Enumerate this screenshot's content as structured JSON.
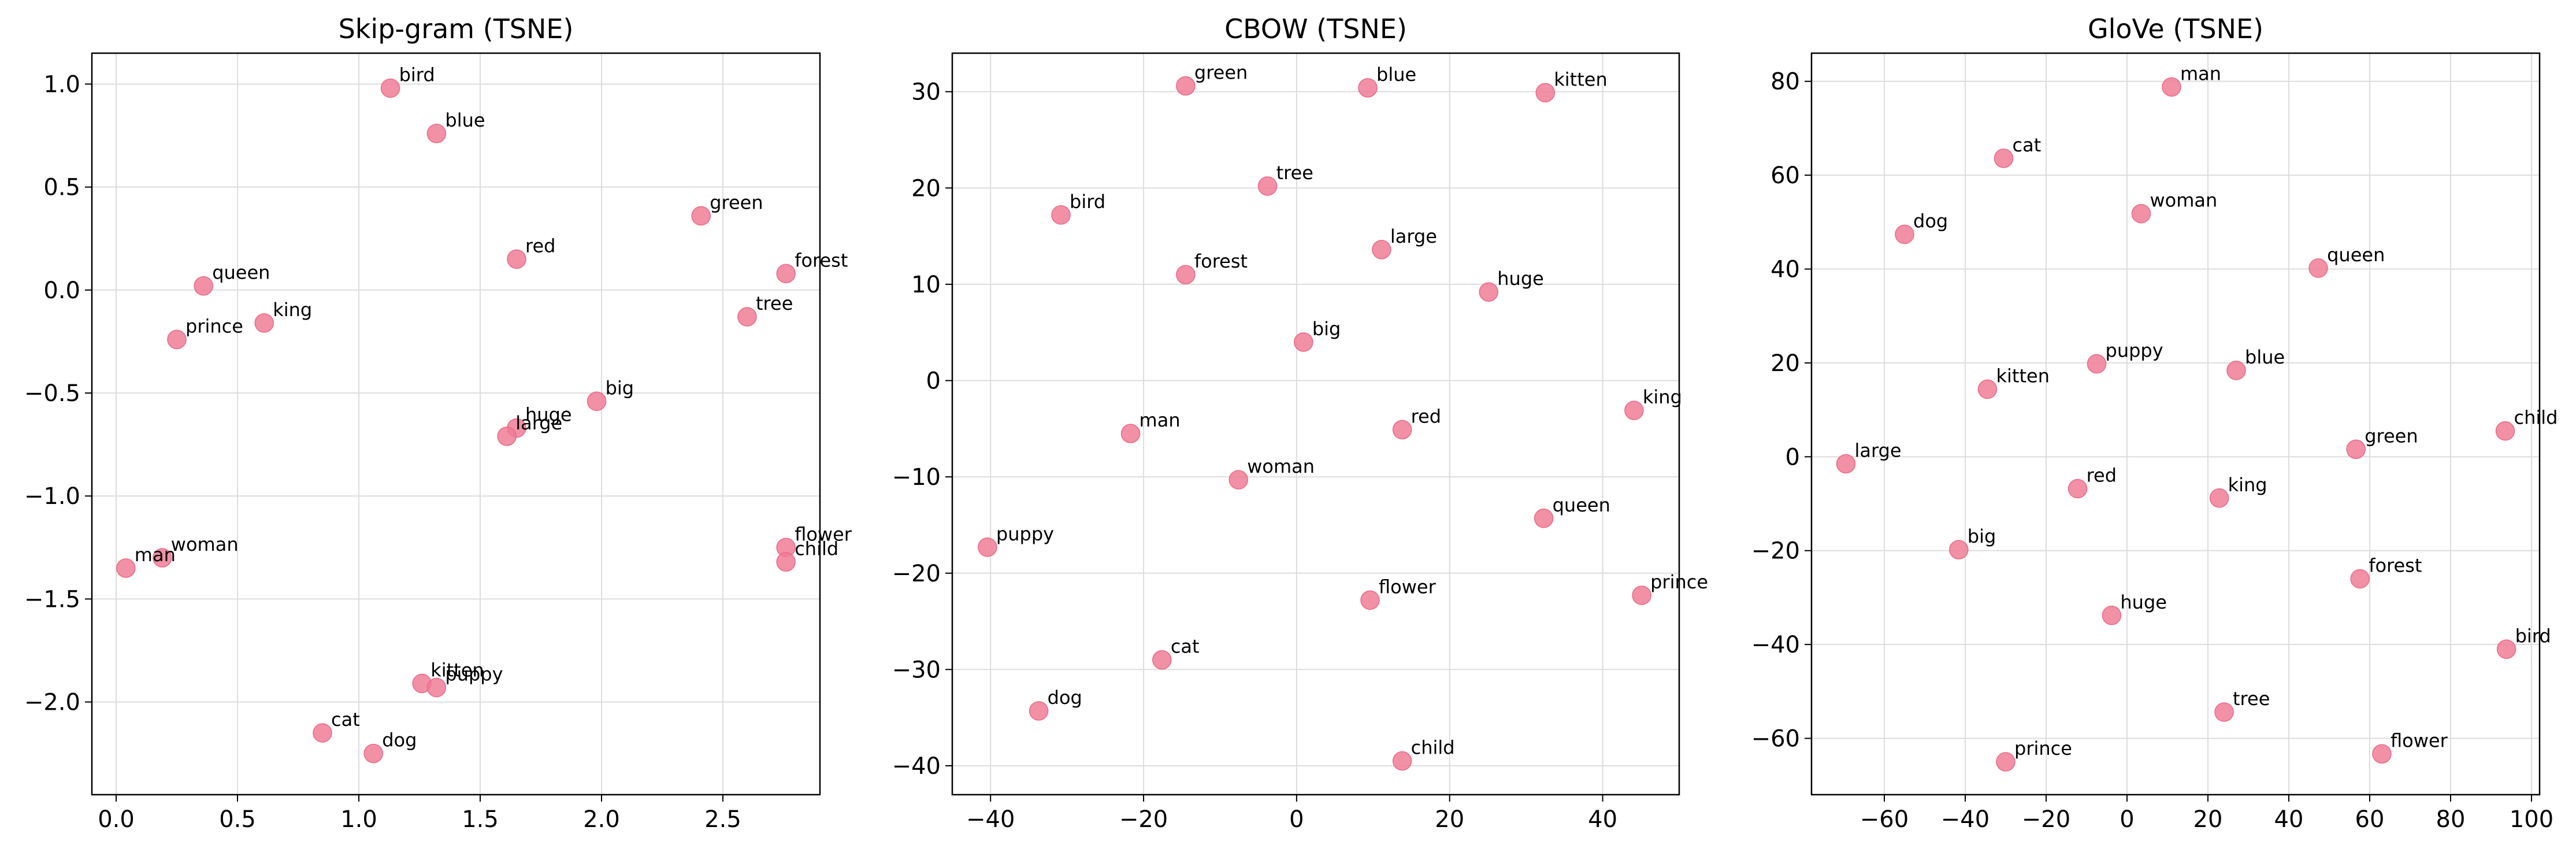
{
  "chart_data": [
    {
      "type": "scatter",
      "title": "Skip-gram (TSNE)",
      "xlim": [
        -0.1,
        2.9
      ],
      "ylim": [
        -2.45,
        1.15
      ],
      "xticks": [
        0.0,
        0.5,
        1.0,
        1.5,
        2.0,
        2.5
      ],
      "xtick_labels": [
        "0.0",
        "0.5",
        "1.0",
        "1.5",
        "2.0",
        "2.5"
      ],
      "yticks": [
        1.0,
        0.5,
        0.0,
        -0.5,
        -1.0,
        -1.5,
        -2.0
      ],
      "ytick_labels": [
        "1.0",
        "0.5",
        "0.0",
        "−0.5",
        "−1.0",
        "−1.5",
        "−2.0"
      ],
      "grid": true,
      "point_color": "#f07c96",
      "points": [
        {
          "label": "bird",
          "x": 1.13,
          "y": 0.98
        },
        {
          "label": "blue",
          "x": 1.32,
          "y": 0.76
        },
        {
          "label": "green",
          "x": 2.41,
          "y": 0.36
        },
        {
          "label": "red",
          "x": 1.65,
          "y": 0.15
        },
        {
          "label": "forest",
          "x": 2.76,
          "y": 0.08
        },
        {
          "label": "queen",
          "x": 0.36,
          "y": 0.02
        },
        {
          "label": "tree",
          "x": 2.6,
          "y": -0.13
        },
        {
          "label": "king",
          "x": 0.61,
          "y": -0.16
        },
        {
          "label": "prince",
          "x": 0.25,
          "y": -0.24
        },
        {
          "label": "big",
          "x": 1.98,
          "y": -0.54
        },
        {
          "label": "huge",
          "x": 1.65,
          "y": -0.67
        },
        {
          "label": "large",
          "x": 1.61,
          "y": -0.71
        },
        {
          "label": "flower",
          "x": 2.76,
          "y": -1.25
        },
        {
          "label": "woman",
          "x": 0.19,
          "y": -1.3
        },
        {
          "label": "child",
          "x": 2.76,
          "y": -1.32
        },
        {
          "label": "man",
          "x": 0.04,
          "y": -1.35
        },
        {
          "label": "kitten",
          "x": 1.26,
          "y": -1.91
        },
        {
          "label": "puppy",
          "x": 1.32,
          "y": -1.93
        },
        {
          "label": "cat",
          "x": 0.85,
          "y": -2.15
        },
        {
          "label": "dog",
          "x": 1.06,
          "y": -2.25
        }
      ]
    },
    {
      "type": "scatter",
      "title": "CBOW (TSNE)",
      "xlim": [
        -45,
        50
      ],
      "ylim": [
        -43,
        34
      ],
      "xticks": [
        -40,
        -20,
        0,
        20,
        40
      ],
      "xtick_labels": [
        "−40",
        "−20",
        "0",
        "20",
        "40"
      ],
      "yticks": [
        30,
        20,
        10,
        0,
        -10,
        -20,
        -30,
        -40
      ],
      "ytick_labels": [
        "30",
        "20",
        "10",
        "0",
        "−10",
        "−20",
        "−30",
        "−40"
      ],
      "grid": true,
      "point_color": "#f07c96",
      "points": [
        {
          "label": "green",
          "x": -14.5,
          "y": 30.6
        },
        {
          "label": "blue",
          "x": 9.3,
          "y": 30.4
        },
        {
          "label": "kitten",
          "x": 32.5,
          "y": 29.9
        },
        {
          "label": "tree",
          "x": -3.8,
          "y": 20.2
        },
        {
          "label": "bird",
          "x": -30.8,
          "y": 17.2
        },
        {
          "label": "large",
          "x": 11.1,
          "y": 13.6
        },
        {
          "label": "forest",
          "x": -14.5,
          "y": 11.0
        },
        {
          "label": "huge",
          "x": 25.1,
          "y": 9.2
        },
        {
          "label": "big",
          "x": 0.9,
          "y": 4.0
        },
        {
          "label": "king",
          "x": 44.1,
          "y": -3.1
        },
        {
          "label": "red",
          "x": 13.8,
          "y": -5.1
        },
        {
          "label": "man",
          "x": -21.7,
          "y": -5.5
        },
        {
          "label": "woman",
          "x": -7.6,
          "y": -10.3
        },
        {
          "label": "queen",
          "x": 32.3,
          "y": -14.3
        },
        {
          "label": "puppy",
          "x": -40.4,
          "y": -17.3
        },
        {
          "label": "prince",
          "x": 45.1,
          "y": -22.3
        },
        {
          "label": "flower",
          "x": 9.6,
          "y": -22.8
        },
        {
          "label": "cat",
          "x": -17.6,
          "y": -29.0
        },
        {
          "label": "dog",
          "x": -33.7,
          "y": -34.3
        },
        {
          "label": "child",
          "x": 13.8,
          "y": -39.5
        }
      ]
    },
    {
      "type": "scatter",
      "title": "GloVe (TSNE)",
      "xlim": [
        -78,
        102
      ],
      "ylim": [
        -72,
        86
      ],
      "xticks": [
        -60,
        -40,
        -20,
        0,
        20,
        40,
        60,
        80,
        100
      ],
      "xtick_labels": [
        "−60",
        "−40",
        "−20",
        "0",
        "20",
        "40",
        "60",
        "80",
        "100"
      ],
      "yticks": [
        80,
        60,
        40,
        20,
        0,
        -20,
        -40,
        -60
      ],
      "ytick_labels": [
        "80",
        "60",
        "40",
        "20",
        "0",
        "−20",
        "−40",
        "−60"
      ],
      "grid": true,
      "point_color": "#f07c96",
      "points": [
        {
          "label": "man",
          "x": 11.0,
          "y": 78.8
        },
        {
          "label": "cat",
          "x": -30.5,
          "y": 63.6
        },
        {
          "label": "woman",
          "x": 3.5,
          "y": 51.8
        },
        {
          "label": "dog",
          "x": -55.0,
          "y": 47.4
        },
        {
          "label": "queen",
          "x": 47.3,
          "y": 40.2
        },
        {
          "label": "puppy",
          "x": -7.5,
          "y": 19.8
        },
        {
          "label": "blue",
          "x": 27.0,
          "y": 18.4
        },
        {
          "label": "kitten",
          "x": -34.5,
          "y": 14.4
        },
        {
          "label": "child",
          "x": 93.5,
          "y": 5.5
        },
        {
          "label": "green",
          "x": 56.6,
          "y": 1.6
        },
        {
          "label": "large",
          "x": -69.5,
          "y": -1.5
        },
        {
          "label": "red",
          "x": -12.2,
          "y": -6.8
        },
        {
          "label": "king",
          "x": 22.8,
          "y": -8.8
        },
        {
          "label": "big",
          "x": -41.6,
          "y": -19.8
        },
        {
          "label": "forest",
          "x": 57.6,
          "y": -26.0
        },
        {
          "label": "huge",
          "x": -3.8,
          "y": -33.8
        },
        {
          "label": "bird",
          "x": 93.8,
          "y": -41.0
        },
        {
          "label": "tree",
          "x": 24.0,
          "y": -54.4
        },
        {
          "label": "flower",
          "x": 63.0,
          "y": -63.3
        },
        {
          "label": "prince",
          "x": -30.0,
          "y": -65.0
        }
      ]
    }
  ]
}
